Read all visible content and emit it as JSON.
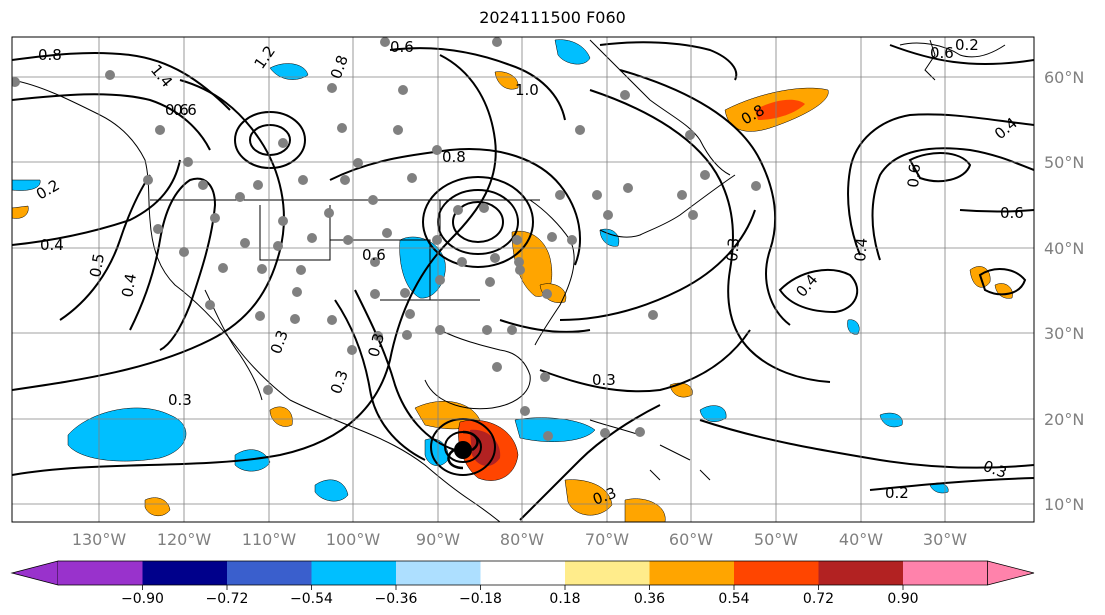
{
  "title": "2024111500 F060",
  "map": {
    "projection": "equirectangular",
    "lon_labels": [
      "130°W",
      "120°W",
      "110°W",
      "100°W",
      "90°W",
      "80°W",
      "70°W",
      "60°W",
      "50°W",
      "40°W",
      "30°W"
    ],
    "lat_labels": [
      "10°N",
      "20°N",
      "30°N",
      "40°N",
      "50°N",
      "60°N"
    ],
    "contour_labels": [
      "0.8",
      "0.6",
      "1.2",
      "1.4",
      "0.6",
      "0.8",
      "1.0",
      "0.4",
      "0.2",
      "0.4",
      "0.5",
      "0.3",
      "0.6",
      "0.3",
      "0.8",
      "0.3",
      "0.2",
      "0.3",
      "0.8",
      "0.4",
      "0.6",
      "0.6",
      "0.4",
      "0.3",
      "0.3",
      "0.2",
      "0.6",
      "0.4",
      "0.3",
      "0.6",
      "0.3"
    ],
    "storm_marker": "tropical-cyclone-center",
    "colors": {
      "background": "#ffffff",
      "contour": "#000000",
      "gridline": "#808080",
      "station_dot": "#808080",
      "coastline": "#000000"
    }
  },
  "colorbar": {
    "ticks": [
      "−0.90",
      "−0.72",
      "−0.54",
      "−0.36",
      "−0.18",
      "0.18",
      "0.36",
      "0.54",
      "0.72",
      "0.90"
    ],
    "colors": [
      "#9932CC",
      "#00008B",
      "#3A5FCD",
      "#00BFFF",
      "#ADDFFF",
      "#FFFFFF",
      "#FFEC8B",
      "#FFA500",
      "#FF4500",
      "#B22222",
      "#FF82AB"
    ],
    "extend": "both"
  }
}
